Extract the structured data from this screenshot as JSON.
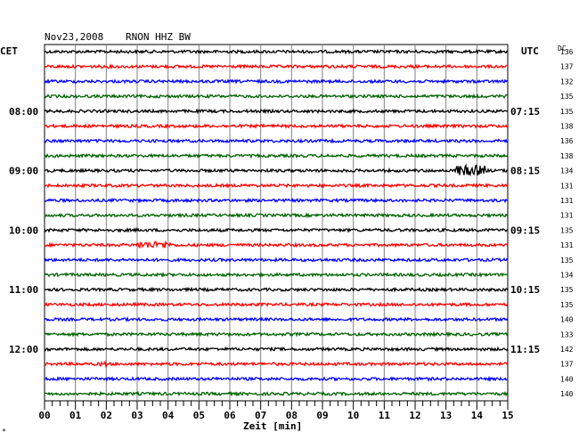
{
  "header": {
    "date": "Nov23,2008",
    "station": "RNON HHZ BW",
    "left_zone": "CET",
    "right_zone": "UTC",
    "dc_label": "DC"
  },
  "footer": {
    "xlabel": "Zeit [min]",
    "corner_mark": "*"
  },
  "chart_data": {
    "type": "line",
    "title": "Nov23,2008   RNON HHZ BW",
    "xlabel": "Zeit [min]",
    "xlim": [
      0,
      15
    ],
    "x_ticks": [
      "00",
      "01",
      "02",
      "03",
      "04",
      "05",
      "06",
      "07",
      "08",
      "09",
      "10",
      "11",
      "12",
      "13",
      "14",
      "15"
    ],
    "grid": true,
    "trace_count": 24,
    "trace_colors": [
      "#000000",
      "#ff0000",
      "#0000ff",
      "#006400"
    ],
    "left_time_labels": [
      {
        "trace": 4,
        "label": "08:00"
      },
      {
        "trace": 8,
        "label": "09:00"
      },
      {
        "trace": 12,
        "label": "10:00"
      },
      {
        "trace": 16,
        "label": "11:00"
      },
      {
        "trace": 20,
        "label": "12:00"
      }
    ],
    "right_time_labels": [
      {
        "trace": 4,
        "label": "07:15"
      },
      {
        "trace": 8,
        "label": "08:15"
      },
      {
        "trace": 12,
        "label": "09:15"
      },
      {
        "trace": 16,
        "label": "10:15"
      },
      {
        "trace": 20,
        "label": "11:15"
      }
    ],
    "dc_offsets": [
      136,
      137,
      132,
      135,
      135,
      138,
      136,
      138,
      134,
      131,
      131,
      131,
      135,
      131,
      135,
      134,
      135,
      135,
      140,
      133,
      142,
      137,
      140,
      140
    ],
    "events": [
      {
        "trace": 8,
        "x_start": 13.3,
        "x_end": 14.3,
        "amplitude": 6
      },
      {
        "trace": 13,
        "x_start": 3.0,
        "x_end": 4.1,
        "amplitude": 4
      },
      {
        "trace": 21,
        "x_start": 1.8,
        "x_end": 2.0,
        "amplitude": 3
      }
    ]
  }
}
